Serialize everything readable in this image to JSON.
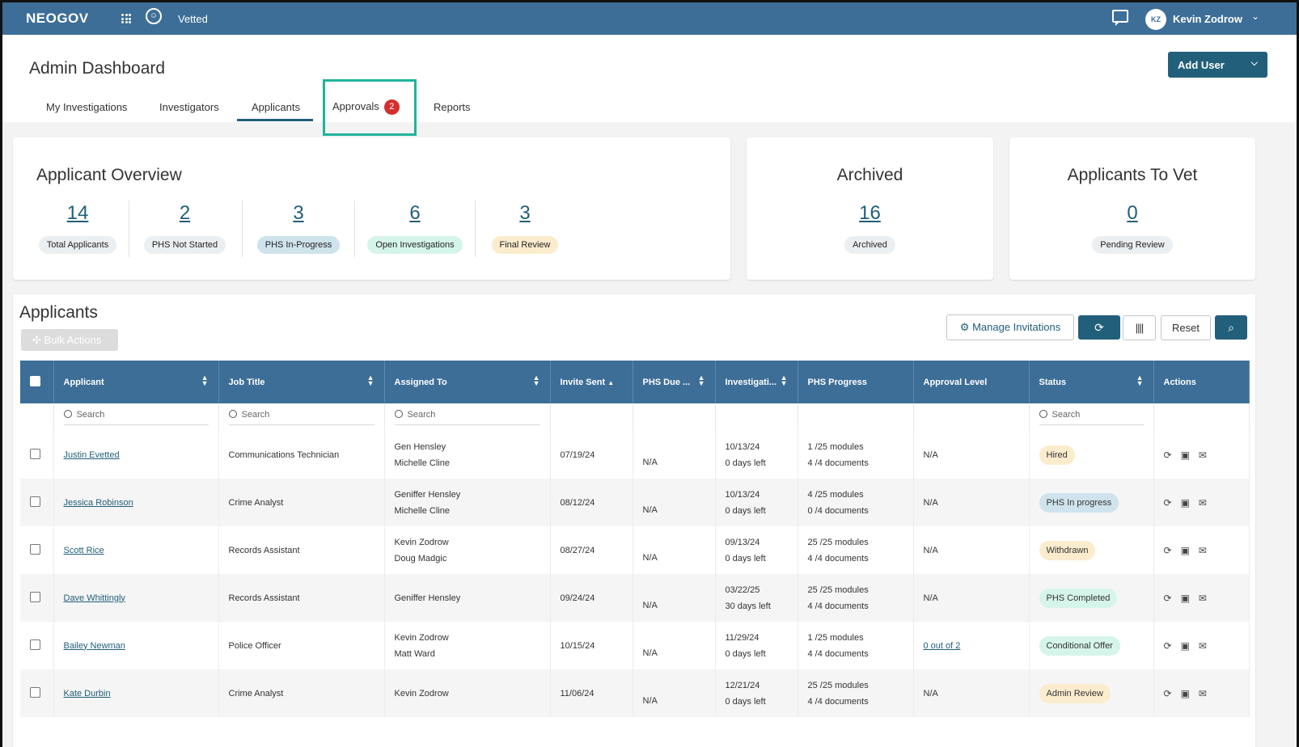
{
  "topbar": {
    "brand": "NEOGOV",
    "app_name": "Vetted",
    "user_initials": "KZ",
    "user_name": "Kevin Zodrow"
  },
  "header": {
    "title": "Admin Dashboard",
    "add_user_label": "Add User"
  },
  "tabs": [
    {
      "label": "My Investigations"
    },
    {
      "label": "Investigators"
    },
    {
      "label": "Applicants",
      "active": true
    },
    {
      "label": "Approvals",
      "badge": "2"
    },
    {
      "label": "Reports"
    }
  ],
  "overview": {
    "title": "Applicant Overview",
    "stats": [
      {
        "value": "14",
        "label": "Total Applicants",
        "color": "#eceff1"
      },
      {
        "value": "2",
        "label": "PHS Not Started",
        "color": "#eceff1"
      },
      {
        "value": "3",
        "label": "PHS In-Progress",
        "color": "#cfe3ec"
      },
      {
        "value": "6",
        "label": "Open Investigations",
        "color": "#d6f5ea"
      },
      {
        "value": "3",
        "label": "Final Review",
        "color": "#fbeccd"
      }
    ]
  },
  "archived": {
    "title": "Archived",
    "value": "16",
    "label": "Archived"
  },
  "to_vet": {
    "title": "Applicants To Vet",
    "value": "0",
    "label": "Pending Review"
  },
  "applicants": {
    "title": "Applicants",
    "bulk_label": "Bulk Actions",
    "manage_label": "Manage Invitations",
    "reset_label": "Reset",
    "columns": [
      "Applicant",
      "Job Title",
      "Assigned To",
      "Invite Sent",
      "PHS Due ...",
      "Investigati...",
      "PHS Progress",
      "Approval Level",
      "Status",
      "Actions"
    ],
    "search_placeholder": "Search",
    "rows": [
      {
        "name": "Justin Evetted",
        "job": "Communications Technician",
        "assigned1": "Gen Hensley",
        "assigned2": "Michelle Cline",
        "invite": "07/19/24",
        "due": "N/A",
        "inv1": "10/13/24",
        "inv2": "0 days left",
        "prog1": "1 /25 modules",
        "prog2": "4 /4 documents",
        "approval": "N/A",
        "status": "Hired",
        "status_color": "#fbeccd"
      },
      {
        "name": "Jessica Robinson",
        "job": "Crime Analyst",
        "assigned1": "Geniffer Hensley",
        "assigned2": "Michelle Cline",
        "invite": "08/12/24",
        "due": "N/A",
        "inv1": "10/13/24",
        "inv2": "0 days left",
        "prog1": "4 /25 modules",
        "prog2": "0 /4 documents",
        "approval": "N/A",
        "status": "PHS In progress",
        "status_color": "#cfe3ec"
      },
      {
        "name": "Scott Rice",
        "job": "Records Assistant",
        "assigned1": "Kevin Zodrow",
        "assigned2": "Doug Madgic",
        "invite": "08/27/24",
        "due": "N/A",
        "inv1": "09/13/24",
        "inv2": "0 days left",
        "prog1": "25 /25 modules",
        "prog2": "4 /4 documents",
        "approval": "N/A",
        "status": "Withdrawn",
        "status_color": "#fbeccd"
      },
      {
        "name": "Dave Whittingly",
        "job": "Records Assistant",
        "assigned1": "Geniffer Hensley",
        "assigned2": "",
        "invite": "09/24/24",
        "due": "N/A",
        "inv1": "03/22/25",
        "inv2": "30 days left",
        "prog1": "25 /25 modules",
        "prog2": "4 /4 documents",
        "approval": "N/A",
        "status": "PHS Completed",
        "status_color": "#d6f5ea"
      },
      {
        "name": "Bailey Newman",
        "job": "Police Officer",
        "assigned1": "Kevin Zodrow",
        "assigned2": "Matt Ward",
        "invite": "10/15/24",
        "due": "N/A",
        "inv1": "11/29/24",
        "inv2": "0 days left",
        "prog1": "1 /25 modules",
        "prog2": "4 /4 documents",
        "approval": "0 out of 2",
        "approval_link": true,
        "status": "Conditional Offer",
        "status_color": "#d6f5ea"
      },
      {
        "name": "Kate Durbin",
        "job": "Crime Analyst",
        "assigned1": "Kevin Zodrow",
        "assigned2": "",
        "invite": "11/06/24",
        "due": "N/A",
        "inv1": "12/21/24",
        "inv2": "0 days left",
        "prog1": "25 /25 modules",
        "prog2": "4 /4 documents",
        "approval": "N/A",
        "status": "Admin Review",
        "status_color": "#fbeccd"
      }
    ]
  }
}
